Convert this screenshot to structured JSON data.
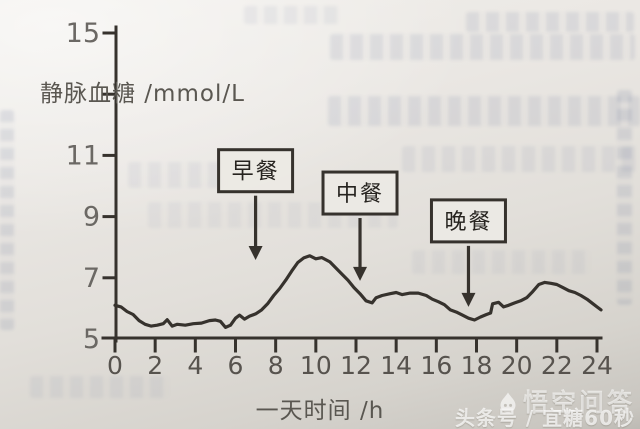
{
  "colors": {
    "ink": "#36322d",
    "y_tick_label": "#6b6864",
    "x_tick_label": "#57534e",
    "box_fill": "#ece9e4",
    "box_text": "#26231f"
  },
  "chart_data": {
    "type": "line",
    "title": "",
    "ylabel": "静脉血糖 /mmol/L",
    "xlabel": "一天时间 /h",
    "x_range": [
      0,
      24
    ],
    "y_range": [
      5,
      15
    ],
    "x_ticks": [
      0,
      2,
      4,
      6,
      8,
      10,
      12,
      14,
      16,
      18,
      20,
      22,
      24
    ],
    "y_ticks": [
      5,
      7,
      9,
      11,
      13,
      15
    ],
    "y_tick_labels": [
      5,
      7,
      9,
      11,
      15
    ],
    "grid": false,
    "legend": "none",
    "series": [
      {
        "name": "venous-blood-glucose",
        "points": [
          [
            0,
            6.1
          ],
          [
            0.3,
            6.05
          ],
          [
            0.6,
            5.9
          ],
          [
            0.9,
            5.8
          ],
          [
            1.2,
            5.6
          ],
          [
            1.5,
            5.48
          ],
          [
            1.8,
            5.42
          ],
          [
            2.1,
            5.45
          ],
          [
            2.4,
            5.5
          ],
          [
            2.6,
            5.63
          ],
          [
            2.85,
            5.42
          ],
          [
            3.1,
            5.48
          ],
          [
            3.5,
            5.45
          ],
          [
            3.9,
            5.5
          ],
          [
            4.3,
            5.52
          ],
          [
            4.7,
            5.6
          ],
          [
            5.0,
            5.62
          ],
          [
            5.25,
            5.58
          ],
          [
            5.5,
            5.38
          ],
          [
            5.75,
            5.45
          ],
          [
            6.0,
            5.68
          ],
          [
            6.2,
            5.78
          ],
          [
            6.45,
            5.65
          ],
          [
            6.7,
            5.75
          ],
          [
            7.0,
            5.82
          ],
          [
            7.3,
            5.95
          ],
          [
            7.6,
            6.15
          ],
          [
            7.9,
            6.42
          ],
          [
            8.2,
            6.65
          ],
          [
            8.5,
            6.92
          ],
          [
            8.8,
            7.22
          ],
          [
            9.1,
            7.5
          ],
          [
            9.4,
            7.65
          ],
          [
            9.7,
            7.72
          ],
          [
            10.0,
            7.62
          ],
          [
            10.3,
            7.66
          ],
          [
            10.7,
            7.52
          ],
          [
            11.0,
            7.32
          ],
          [
            11.3,
            7.12
          ],
          [
            11.6,
            6.92
          ],
          [
            11.9,
            6.68
          ],
          [
            12.2,
            6.48
          ],
          [
            12.5,
            6.25
          ],
          [
            12.8,
            6.18
          ],
          [
            13.0,
            6.35
          ],
          [
            13.3,
            6.42
          ],
          [
            13.7,
            6.48
          ],
          [
            14.0,
            6.52
          ],
          [
            14.3,
            6.45
          ],
          [
            14.7,
            6.5
          ],
          [
            15.1,
            6.5
          ],
          [
            15.5,
            6.42
          ],
          [
            15.8,
            6.3
          ],
          [
            16.1,
            6.22
          ],
          [
            16.4,
            6.12
          ],
          [
            16.7,
            5.95
          ],
          [
            17.0,
            5.88
          ],
          [
            17.3,
            5.78
          ],
          [
            17.6,
            5.68
          ],
          [
            17.9,
            5.62
          ],
          [
            18.2,
            5.72
          ],
          [
            18.5,
            5.8
          ],
          [
            18.7,
            5.85
          ],
          [
            18.8,
            6.15
          ],
          [
            19.1,
            6.2
          ],
          [
            19.35,
            6.05
          ],
          [
            19.6,
            6.1
          ],
          [
            19.9,
            6.18
          ],
          [
            20.2,
            6.25
          ],
          [
            20.5,
            6.35
          ],
          [
            20.8,
            6.55
          ],
          [
            21.1,
            6.78
          ],
          [
            21.4,
            6.85
          ],
          [
            21.7,
            6.82
          ],
          [
            22.0,
            6.78
          ],
          [
            22.3,
            6.68
          ],
          [
            22.6,
            6.58
          ],
          [
            22.9,
            6.52
          ],
          [
            23.2,
            6.42
          ],
          [
            23.5,
            6.3
          ],
          [
            23.8,
            6.15
          ],
          [
            24.0,
            6.05
          ],
          [
            24.2,
            5.95
          ]
        ]
      }
    ],
    "annotations": [
      {
        "id": "breakfast",
        "label": "早餐",
        "hour": 7.0,
        "box_value": 10.5,
        "tip_value": 7.58
      },
      {
        "id": "lunch",
        "label": "中餐",
        "hour": 12.2,
        "box_value": 9.77,
        "tip_value": 6.9
      },
      {
        "id": "dinner",
        "label": "晚餐",
        "hour": 17.6,
        "box_value": 8.86,
        "tip_value": 6.05
      }
    ]
  },
  "watermark": {
    "line1": "悟空问答",
    "line2": "头条号 / 宜糖60秒"
  }
}
